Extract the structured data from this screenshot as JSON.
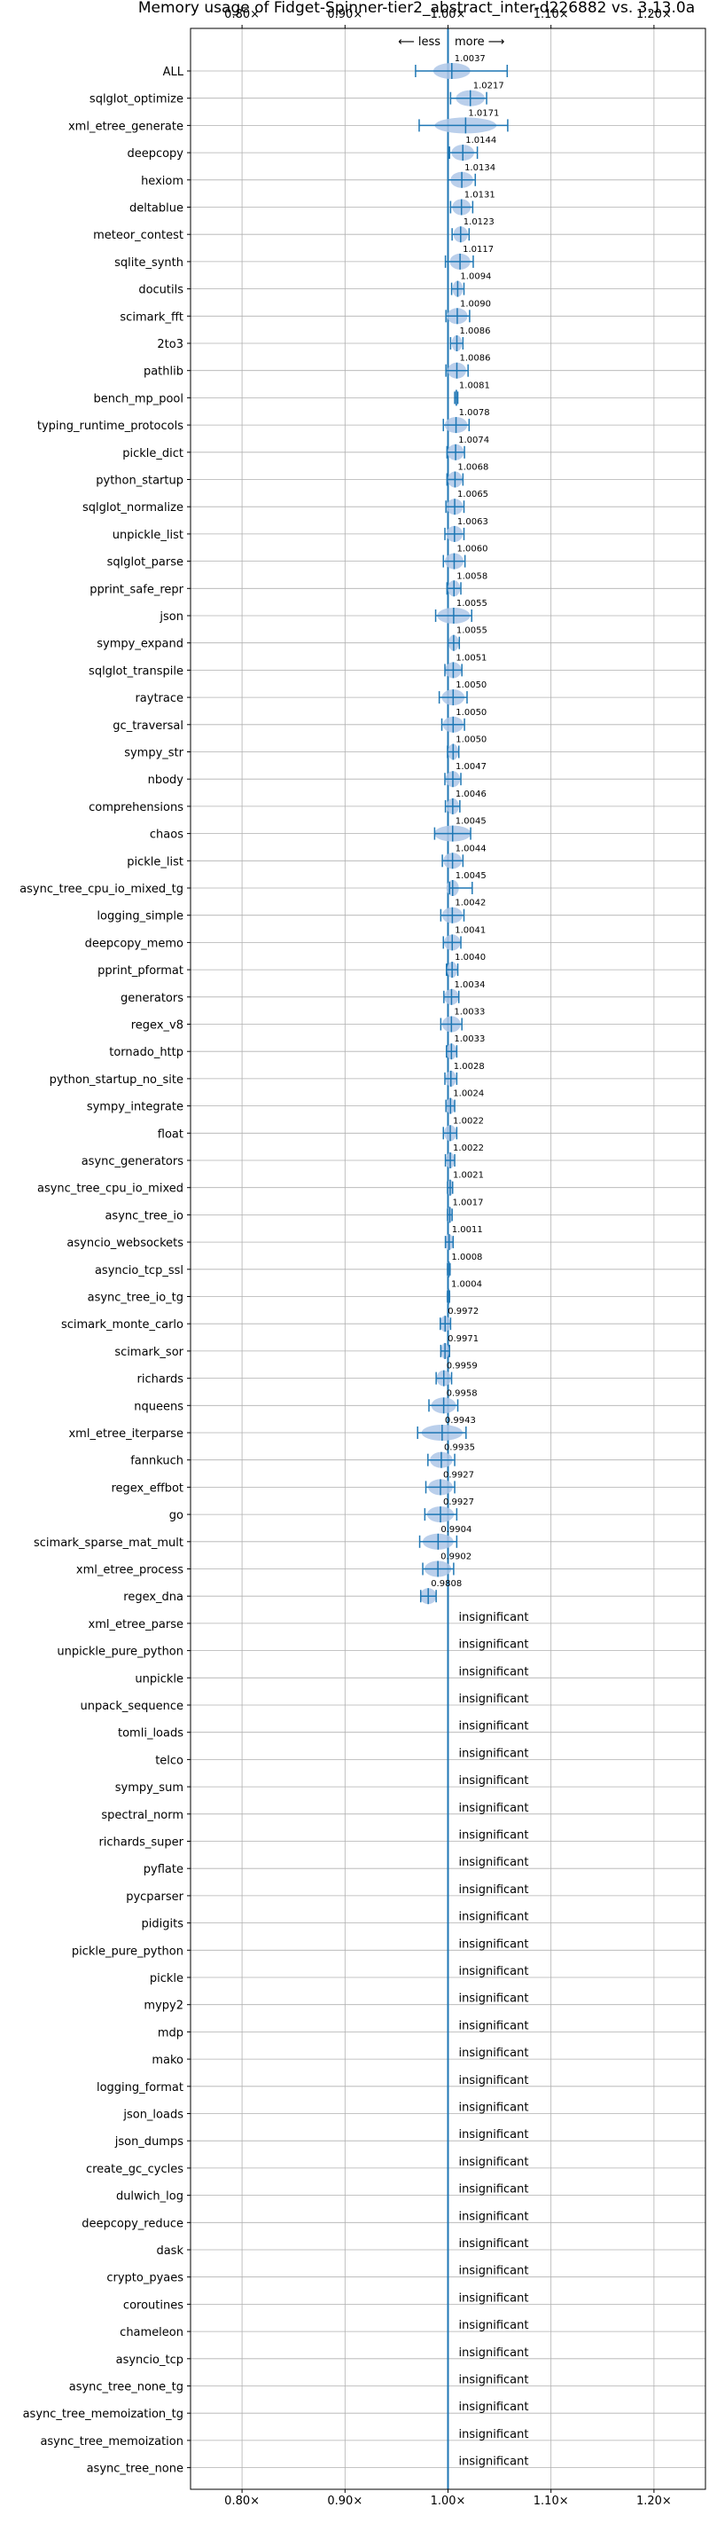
{
  "chart_data": {
    "type": "violin",
    "title": "Memory usage of Fidget-Spinner-tier2_abstract_inter-d226882 vs. 3.13.0a",
    "direction_labels": {
      "less": "⟵ less",
      "more": "more ⟶"
    },
    "xlim": [
      0.75,
      1.25
    ],
    "xticks": [
      0.8,
      0.9,
      1.0,
      1.1,
      1.2
    ],
    "xtick_labels": [
      "0.80×",
      "0.90×",
      "1.00×",
      "1.10×",
      "1.20×"
    ],
    "reference_line": 1.0,
    "grid": true,
    "insignificant_label": "insignificant",
    "benchmarks": [
      {
        "name": "ALL",
        "value": 1.0037,
        "label": "1.0037",
        "lo": 0.9685,
        "hi": 1.0575,
        "width": 0.018
      },
      {
        "name": "sqlglot_optimize",
        "value": 1.0217,
        "label": "1.0217",
        "lo": 1.0025,
        "hi": 1.0375,
        "width": 0.014
      },
      {
        "name": "xml_etree_generate",
        "value": 1.0171,
        "label": "1.0171",
        "lo": 0.972,
        "hi": 1.058,
        "width": 0.03
      },
      {
        "name": "deepcopy",
        "value": 1.0144,
        "label": "1.0144",
        "lo": 1.0015,
        "hi": 1.0285,
        "width": 0.011
      },
      {
        "name": "hexiom",
        "value": 1.0134,
        "label": "1.0134",
        "lo": 1.0,
        "hi": 1.0265,
        "width": 0.011
      },
      {
        "name": "deltablue",
        "value": 1.0131,
        "label": "1.0131",
        "lo": 1.0025,
        "hi": 1.024,
        "width": 0.009
      },
      {
        "name": "meteor_contest",
        "value": 1.0123,
        "label": "1.0123",
        "lo": 1.004,
        "hi": 1.0205,
        "width": 0.007
      },
      {
        "name": "sqlite_synth",
        "value": 1.0117,
        "label": "1.0117",
        "lo": 0.9975,
        "hi": 1.0245,
        "width": 0.01
      },
      {
        "name": "docutils",
        "value": 1.0094,
        "label": "1.0094",
        "lo": 1.0035,
        "hi": 1.0155,
        "width": 0.005
      },
      {
        "name": "scimark_fft",
        "value": 1.009,
        "label": "1.0090",
        "lo": 0.998,
        "hi": 1.021,
        "width": 0.01
      },
      {
        "name": "2to3",
        "value": 1.0086,
        "label": "1.0086",
        "lo": 1.0025,
        "hi": 1.0145,
        "width": 0.005
      },
      {
        "name": "pathlib",
        "value": 1.0086,
        "label": "1.0086",
        "lo": 0.998,
        "hi": 1.0195,
        "width": 0.009
      },
      {
        "name": "bench_mp_pool",
        "value": 1.0081,
        "label": "1.0081",
        "lo": 1.0065,
        "hi": 1.0095,
        "width": 0.002
      },
      {
        "name": "typing_runtime_protocols",
        "value": 1.0078,
        "label": "1.0078",
        "lo": 0.9955,
        "hi": 1.0205,
        "width": 0.011
      },
      {
        "name": "pickle_dict",
        "value": 1.0074,
        "label": "1.0074",
        "lo": 0.999,
        "hi": 1.016,
        "width": 0.008
      },
      {
        "name": "python_startup",
        "value": 1.0068,
        "label": "1.0068",
        "lo": 0.999,
        "hi": 1.0145,
        "width": 0.007
      },
      {
        "name": "sqlglot_normalize",
        "value": 1.0065,
        "label": "1.0065",
        "lo": 0.998,
        "hi": 1.0155,
        "width": 0.008
      },
      {
        "name": "unpickle_list",
        "value": 1.0063,
        "label": "1.0063",
        "lo": 0.997,
        "hi": 1.0155,
        "width": 0.008
      },
      {
        "name": "sqlglot_parse",
        "value": 1.006,
        "label": "1.0060",
        "lo": 0.9955,
        "hi": 1.0165,
        "width": 0.009
      },
      {
        "name": "pprint_safe_repr",
        "value": 1.0058,
        "label": "1.0058",
        "lo": 0.999,
        "hi": 1.0125,
        "width": 0.006
      },
      {
        "name": "json",
        "value": 1.0055,
        "label": "1.0055",
        "lo": 0.988,
        "hi": 1.023,
        "width": 0.016
      },
      {
        "name": "sympy_expand",
        "value": 1.0055,
        "label": "1.0055",
        "lo": 1.0,
        "hi": 1.011,
        "width": 0.005
      },
      {
        "name": "sqlglot_transpile",
        "value": 1.0051,
        "label": "1.0051",
        "lo": 0.997,
        "hi": 1.0135,
        "width": 0.008
      },
      {
        "name": "raytrace",
        "value": 1.005,
        "label": "1.0050",
        "lo": 0.9915,
        "hi": 1.0185,
        "width": 0.011
      },
      {
        "name": "gc_traversal",
        "value": 1.005,
        "label": "1.0050",
        "lo": 0.994,
        "hi": 1.016,
        "width": 0.01
      },
      {
        "name": "sympy_str",
        "value": 1.005,
        "label": "1.0050",
        "lo": 0.9995,
        "hi": 1.0105,
        "width": 0.005
      },
      {
        "name": "nbody",
        "value": 1.0047,
        "label": "1.0047",
        "lo": 0.997,
        "hi": 1.0125,
        "width": 0.007
      },
      {
        "name": "comprehensions",
        "value": 1.0046,
        "label": "1.0046",
        "lo": 0.9975,
        "hi": 1.0115,
        "width": 0.006
      },
      {
        "name": "chaos",
        "value": 1.0045,
        "label": "1.0045",
        "lo": 0.987,
        "hi": 1.022,
        "width": 0.018
      },
      {
        "name": "pickle_list",
        "value": 1.0044,
        "label": "1.0044",
        "lo": 0.9945,
        "hi": 1.0145,
        "width": 0.009
      },
      {
        "name": "async_tree_cpu_io_mixed_tg",
        "value": 1.0045,
        "label": "1.0045",
        "lo": 1.0015,
        "hi": 1.0235,
        "width": 0.006
      },
      {
        "name": "logging_simple",
        "value": 1.0042,
        "label": "1.0042",
        "lo": 0.993,
        "hi": 1.0155,
        "width": 0.01
      },
      {
        "name": "deepcopy_memo",
        "value": 1.0041,
        "label": "1.0041",
        "lo": 0.9955,
        "hi": 1.0125,
        "width": 0.008
      },
      {
        "name": "pprint_pformat",
        "value": 1.004,
        "label": "1.0040",
        "lo": 0.9985,
        "hi": 1.0095,
        "width": 0.005
      },
      {
        "name": "generators",
        "value": 1.0034,
        "label": "1.0034",
        "lo": 0.996,
        "hi": 1.0105,
        "width": 0.007
      },
      {
        "name": "regex_v8",
        "value": 1.0033,
        "label": "1.0033",
        "lo": 0.993,
        "hi": 1.0135,
        "width": 0.009
      },
      {
        "name": "tornado_http",
        "value": 1.0033,
        "label": "1.0033",
        "lo": 0.9985,
        "hi": 1.0085,
        "width": 0.005
      },
      {
        "name": "python_startup_no_site",
        "value": 1.0028,
        "label": "1.0028",
        "lo": 0.997,
        "hi": 1.0085,
        "width": 0.005
      },
      {
        "name": "sympy_integrate",
        "value": 1.0024,
        "label": "1.0024",
        "lo": 0.998,
        "hi": 1.0065,
        "width": 0.004
      },
      {
        "name": "float",
        "value": 1.0022,
        "label": "1.0022",
        "lo": 0.9955,
        "hi": 1.0085,
        "width": 0.006
      },
      {
        "name": "async_generators",
        "value": 1.0022,
        "label": "1.0022",
        "lo": 0.9975,
        "hi": 1.0065,
        "width": 0.004
      },
      {
        "name": "async_tree_cpu_io_mixed",
        "value": 1.0021,
        "label": "1.0021",
        "lo": 0.9995,
        "hi": 1.0045,
        "width": 0.003
      },
      {
        "name": "async_tree_io",
        "value": 1.0017,
        "label": "1.0017",
        "lo": 0.9995,
        "hi": 1.004,
        "width": 0.003
      },
      {
        "name": "asyncio_websockets",
        "value": 1.0011,
        "label": "1.0011",
        "lo": 0.9975,
        "hi": 1.005,
        "width": 0.004
      },
      {
        "name": "asyncio_tcp_ssl",
        "value": 1.0008,
        "label": "1.0008",
        "lo": 0.9995,
        "hi": 1.002,
        "width": 0.002
      },
      {
        "name": "async_tree_io_tg",
        "value": 1.0004,
        "label": "1.0004",
        "lo": 0.9995,
        "hi": 1.0015,
        "width": 0.002
      },
      {
        "name": "scimark_monte_carlo",
        "value": 0.9972,
        "label": "0.9972",
        "lo": 0.9925,
        "hi": 1.0025,
        "width": 0.005
      },
      {
        "name": "scimark_sor",
        "value": 0.9971,
        "label": "0.9971",
        "lo": 0.993,
        "hi": 1.0015,
        "width": 0.004
      },
      {
        "name": "richards",
        "value": 0.9959,
        "label": "0.9959",
        "lo": 0.9885,
        "hi": 1.0035,
        "width": 0.007
      },
      {
        "name": "nqueens",
        "value": 0.9958,
        "label": "0.9958",
        "lo": 0.9815,
        "hi": 1.0095,
        "width": 0.012
      },
      {
        "name": "xml_etree_iterparse",
        "value": 0.9943,
        "label": "0.9943",
        "lo": 0.9705,
        "hi": 1.0175,
        "width": 0.02
      },
      {
        "name": "fannkuch",
        "value": 0.9935,
        "label": "0.9935",
        "lo": 0.9805,
        "hi": 1.0065,
        "width": 0.011
      },
      {
        "name": "regex_effbot",
        "value": 0.9927,
        "label": "0.9927",
        "lo": 0.9785,
        "hi": 1.0065,
        "width": 0.012
      },
      {
        "name": "go",
        "value": 0.9927,
        "label": "0.9927",
        "lo": 0.9775,
        "hi": 1.0085,
        "width": 0.013
      },
      {
        "name": "scimark_sparse_mat_mult",
        "value": 0.9904,
        "label": "0.9904",
        "lo": 0.9725,
        "hi": 1.0085,
        "width": 0.015
      },
      {
        "name": "xml_etree_process",
        "value": 0.9902,
        "label": "0.9902",
        "lo": 0.9755,
        "hi": 1.0055,
        "width": 0.013
      },
      {
        "name": "regex_dna",
        "value": 0.9808,
        "label": "0.9808",
        "lo": 0.9735,
        "hi": 0.9885,
        "width": 0.008
      },
      {
        "name": "xml_etree_parse",
        "value": null
      },
      {
        "name": "unpickle_pure_python",
        "value": null
      },
      {
        "name": "unpickle",
        "value": null
      },
      {
        "name": "unpack_sequence",
        "value": null
      },
      {
        "name": "tomli_loads",
        "value": null
      },
      {
        "name": "telco",
        "value": null
      },
      {
        "name": "sympy_sum",
        "value": null
      },
      {
        "name": "spectral_norm",
        "value": null
      },
      {
        "name": "richards_super",
        "value": null
      },
      {
        "name": "pyflate",
        "value": null
      },
      {
        "name": "pycparser",
        "value": null
      },
      {
        "name": "pidigits",
        "value": null
      },
      {
        "name": "pickle_pure_python",
        "value": null
      },
      {
        "name": "pickle",
        "value": null
      },
      {
        "name": "mypy2",
        "value": null
      },
      {
        "name": "mdp",
        "value": null
      },
      {
        "name": "mako",
        "value": null
      },
      {
        "name": "logging_format",
        "value": null
      },
      {
        "name": "json_loads",
        "value": null
      },
      {
        "name": "json_dumps",
        "value": null
      },
      {
        "name": "create_gc_cycles",
        "value": null
      },
      {
        "name": "dulwich_log",
        "value": null
      },
      {
        "name": "deepcopy_reduce",
        "value": null
      },
      {
        "name": "dask",
        "value": null
      },
      {
        "name": "crypto_pyaes",
        "value": null
      },
      {
        "name": "coroutines",
        "value": null
      },
      {
        "name": "chameleon",
        "value": null
      },
      {
        "name": "asyncio_tcp",
        "value": null
      },
      {
        "name": "async_tree_none_tg",
        "value": null
      },
      {
        "name": "async_tree_memoization_tg",
        "value": null
      },
      {
        "name": "async_tree_memoization",
        "value": null
      },
      {
        "name": "async_tree_none",
        "value": null
      }
    ],
    "colors": {
      "line": "#1f77b4",
      "violin": "#aec7e8",
      "grid": "#b0b0b0",
      "text": "#000000"
    }
  }
}
